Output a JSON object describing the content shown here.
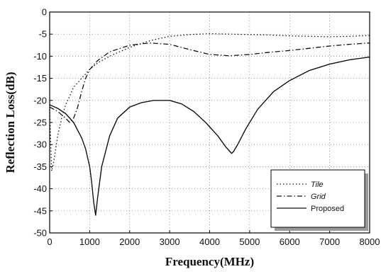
{
  "chart_data": {
    "type": "line",
    "title": "",
    "xlabel": "Frequency(MHz)",
    "ylabel": "Reflection Loss(dB)",
    "xlim": [
      0,
      8000
    ],
    "ylim": [
      -50,
      0
    ],
    "x_ticks": [
      0,
      1000,
      2000,
      3000,
      4000,
      5000,
      6000,
      7000,
      8000
    ],
    "y_ticks": [
      0,
      -5,
      -10,
      -15,
      -20,
      -25,
      -30,
      -35,
      -40,
      -45,
      -50
    ],
    "grid": true,
    "legend_position": "bottom-right",
    "series": [
      {
        "name": "Tile",
        "style": "dotted",
        "color": "#111111",
        "x": [
          0,
          50,
          100,
          150,
          200,
          300,
          400,
          500,
          600,
          800,
          1000,
          1200,
          1500,
          2000,
          2500,
          3000,
          3500,
          4000,
          4500,
          5000,
          5500,
          6000,
          6500,
          7000,
          7500,
          8000
        ],
        "y": [
          -22,
          -36,
          -34,
          -31,
          -28,
          -24,
          -21,
          -19,
          -17,
          -15,
          -13,
          -11.5,
          -10,
          -8,
          -6.5,
          -5.5,
          -5.1,
          -4.9,
          -5,
          -5.1,
          -5.2,
          -5.4,
          -5.5,
          -5.6,
          -5.5,
          -5.3
        ]
      },
      {
        "name": "Grid",
        "style": "dash-dot",
        "color": "#111111",
        "x": [
          0,
          200,
          400,
          500,
          600,
          700,
          800,
          900,
          1000,
          1200,
          1500,
          2000,
          2500,
          3000,
          3500,
          4000,
          4500,
          5000,
          5500,
          6000,
          6500,
          7000,
          7500,
          8000
        ],
        "y": [
          -21.5,
          -22.5,
          -24,
          -25,
          -24,
          -21.5,
          -18,
          -15,
          -13,
          -11,
          -9,
          -7.5,
          -7,
          -7.3,
          -8.5,
          -9.6,
          -9.9,
          -9.6,
          -9.1,
          -8.7,
          -8.2,
          -7.7,
          -7.3,
          -7
        ]
      },
      {
        "name": "Proposed",
        "style": "solid",
        "color": "#111111",
        "x": [
          0,
          200,
          400,
          600,
          800,
          900,
          1000,
          1050,
          1100,
          1150,
          1200,
          1300,
          1500,
          1700,
          2000,
          2300,
          2600,
          3000,
          3300,
          3600,
          3900,
          4200,
          4400,
          4500,
          4550,
          4600,
          4700,
          4900,
          5200,
          5600,
          6000,
          6500,
          7000,
          7500,
          8000
        ],
        "y": [
          -21,
          -21.8,
          -23,
          -25,
          -28.5,
          -31,
          -35,
          -38.5,
          -43,
          -46,
          -42,
          -35,
          -28,
          -24,
          -21.5,
          -20.5,
          -20,
          -20,
          -20.8,
          -22.5,
          -25,
          -28,
          -30.5,
          -31.5,
          -32,
          -31.5,
          -30,
          -26.5,
          -22,
          -18,
          -15.5,
          -13.2,
          -11.8,
          -10.8,
          -10.2
        ]
      }
    ]
  }
}
